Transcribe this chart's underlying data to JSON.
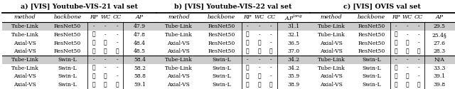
{
  "tables": [
    {
      "label": "a) [VIS] Youtube-VIS-21 val set",
      "ap_superscript": "",
      "rows": [
        [
          "Tube-Link",
          "ResNet50",
          "-",
          "-",
          "-",
          "47.9",
          true
        ],
        [
          "Tube-Link",
          "ResNet50",
          "✓",
          "-",
          "-",
          "47.8",
          false
        ],
        [
          "Axial-VS",
          "ResNet50",
          "✓",
          "✓",
          "-",
          "48.4",
          false
        ],
        [
          "Axial-VS",
          "ResNet50",
          "✓",
          "✓",
          "✓",
          "48.5",
          false
        ],
        [
          "Tube-Link",
          "Swin-L",
          "-",
          "-",
          "-",
          "58.4",
          true
        ],
        [
          "Tube-Link",
          "Swin-L",
          "✓",
          "-",
          "-",
          "58.2",
          false
        ],
        [
          "Axial-VS",
          "Swin-L",
          "✓",
          "✓",
          "-",
          "58.8",
          false
        ],
        [
          "Axial-VS",
          "Swin-L",
          "✓",
          "✓",
          "✓",
          "59.1",
          false
        ]
      ]
    },
    {
      "label": "b) [VIS] Youtube-VIS-22 val set",
      "ap_superscript": "long",
      "rows": [
        [
          "Tube-Link",
          "ResNet50",
          "-",
          "-",
          "-",
          "31.1",
          true
        ],
        [
          "Tube-Link",
          "ResNet50",
          "✓",
          "-",
          "-",
          "32.1",
          false
        ],
        [
          "Axial-VS",
          "ResNet50",
          "✓",
          "✓",
          "-",
          "36.5",
          false
        ],
        [
          "Axial-VS",
          "ResNet50",
          "✓",
          "✓",
          "✓",
          "37.0",
          false
        ],
        [
          "Tube-Link",
          "Swin-L",
          "-",
          "-",
          "-",
          "34.2",
          true
        ],
        [
          "Tube-Link",
          "Swin-L",
          "✓",
          "-",
          "-",
          "34.2",
          false
        ],
        [
          "Axial-VS",
          "Swin-L",
          "✓",
          "✓",
          "-",
          "35.9",
          false
        ],
        [
          "Axial-VS",
          "Swin-L",
          "✓",
          "✓",
          "✓",
          "38.9",
          false
        ]
      ]
    },
    {
      "label": "c) [VIS] OVIS val set",
      "ap_superscript": "",
      "rows": [
        [
          "Tube-Link",
          "ResNet50",
          "-",
          "-",
          "-",
          "29.5",
          true
        ],
        [
          "Tube-Link",
          "ResNet50",
          "✓",
          "-",
          "-",
          "25.4§",
          false
        ],
        [
          "Axial-VS",
          "ResNet50",
          "✓",
          "✓",
          "-",
          "27.6",
          false
        ],
        [
          "Axial-VS",
          "ResNet50",
          "✓",
          "✓",
          "✓",
          "28.3",
          false
        ],
        [
          "Tube-Link",
          "Swin-L",
          "-",
          "-",
          "-",
          "N/A",
          true
        ],
        [
          "Tube-Link",
          "Swin-L",
          "✓",
          "-",
          "-",
          "33.3",
          false
        ],
        [
          "Axial-VS",
          "Swin-L",
          "✓",
          "✓",
          "-",
          "39.1",
          false
        ],
        [
          "Axial-VS",
          "Swin-L",
          "✓",
          "✓",
          "✓",
          "39.8",
          false
        ]
      ]
    }
  ],
  "bg_shaded": "#cccccc",
  "title_fontsize": 6.8,
  "header_fontsize": 5.8,
  "cell_fontsize": 5.5
}
